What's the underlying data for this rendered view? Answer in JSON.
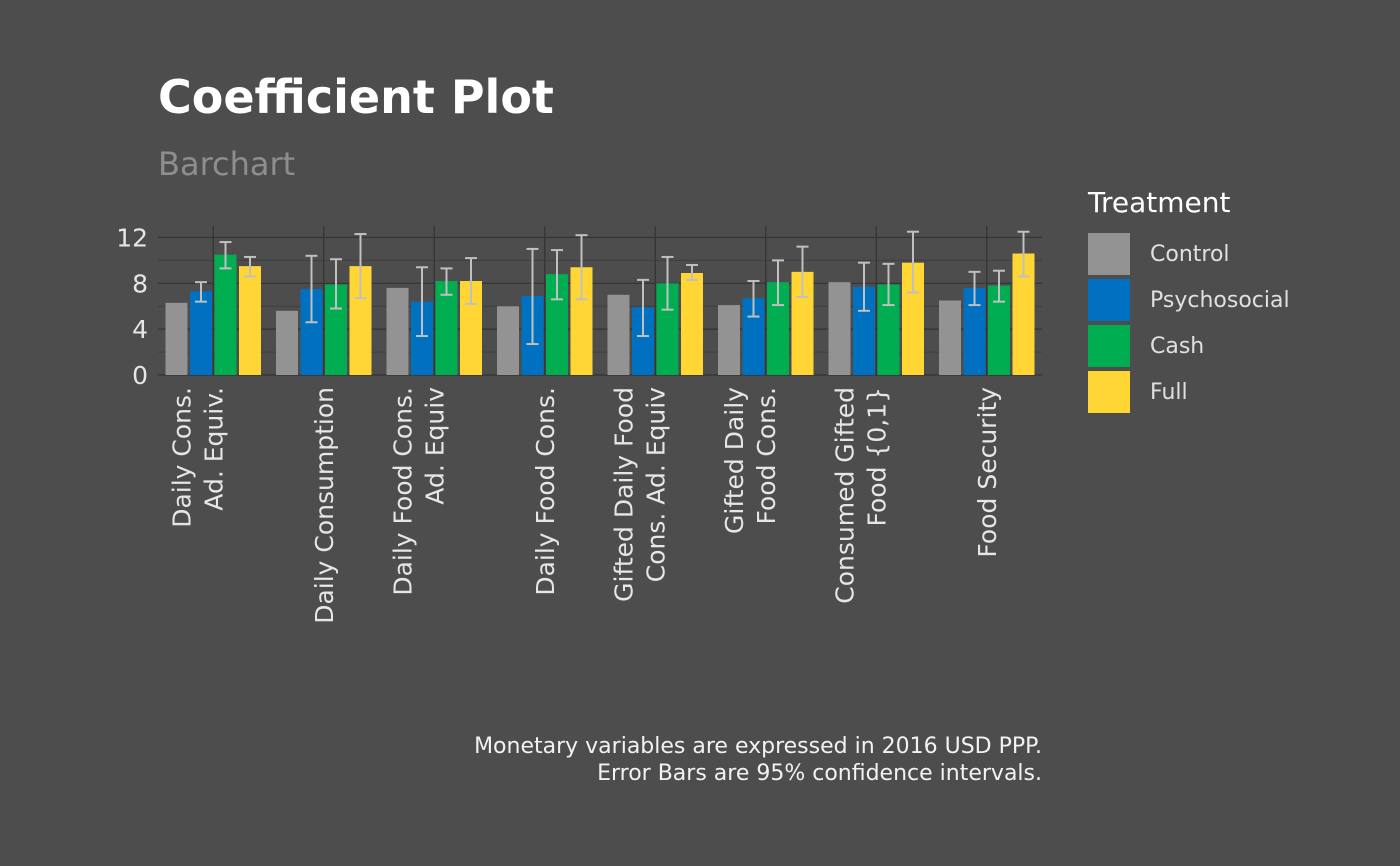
{
  "chart_data": {
    "type": "bar",
    "title": "Coefficient Plot",
    "subtitle": "Barchart",
    "caption_lines": [
      "Monetary variables are expressed in 2016 USD PPP.",
      "Error Bars are 95% confidence intervals."
    ],
    "xlabel": "",
    "ylabel": "",
    "ylim": [
      0,
      13
    ],
    "yticks": [
      0,
      4,
      8,
      12
    ],
    "grid": true,
    "legend_title": "Treatment",
    "legend_position": "right",
    "categories": [
      [
        "Daily Cons.",
        "Ad. Equiv."
      ],
      [
        "Daily Consumption"
      ],
      [
        "Daily Food Cons.",
        "Ad. Equiv"
      ],
      [
        "Daily Food Cons."
      ],
      [
        "Gifted Daily Food",
        "Cons. Ad. Equiv"
      ],
      [
        "Gifted Daily",
        "Food Cons."
      ],
      [
        "Consumed Gifted",
        "Food {0,1}"
      ],
      [
        "Food Security"
      ]
    ],
    "series": [
      {
        "name": "Control",
        "color": "#939393",
        "values": [
          6.3,
          5.6,
          7.6,
          6.0,
          7.0,
          6.1,
          8.1,
          6.5
        ],
        "ci_low": [
          null,
          null,
          null,
          null,
          null,
          null,
          null,
          null
        ],
        "ci_high": [
          null,
          null,
          null,
          null,
          null,
          null,
          null,
          null
        ]
      },
      {
        "name": "Psychosocial",
        "color": "#0070c0",
        "values": [
          7.3,
          7.5,
          6.4,
          6.9,
          5.9,
          6.7,
          7.7,
          7.6
        ],
        "ci_low": [
          6.4,
          4.6,
          3.4,
          2.7,
          3.4,
          5.1,
          5.6,
          6.1
        ],
        "ci_high": [
          8.1,
          10.4,
          9.4,
          11.0,
          8.3,
          8.2,
          9.8,
          9.0
        ]
      },
      {
        "name": "Cash",
        "color": "#00ad50",
        "values": [
          10.5,
          7.9,
          8.2,
          8.8,
          8.0,
          8.1,
          7.9,
          7.8
        ],
        "ci_low": [
          9.3,
          5.8,
          7.0,
          6.6,
          5.7,
          6.1,
          6.1,
          6.4
        ],
        "ci_high": [
          11.6,
          10.1,
          9.3,
          10.9,
          10.3,
          10.0,
          9.7,
          9.1
        ]
      },
      {
        "name": "Full",
        "color": "#ffd633",
        "values": [
          9.5,
          9.5,
          8.2,
          9.4,
          8.9,
          9.0,
          9.8,
          10.6
        ],
        "ci_low": [
          8.6,
          6.7,
          6.2,
          6.6,
          8.3,
          6.8,
          7.2,
          8.6
        ],
        "ci_high": [
          10.3,
          12.3,
          10.2,
          12.2,
          9.6,
          11.2,
          12.5,
          12.5
        ]
      }
    ],
    "colors": {
      "background": "#4d4d4d",
      "grid_major": "#333333",
      "grid_minor": "#3f3f3f",
      "errorbar": "#c0c0c0",
      "tick_text": "#e6e6e6"
    }
  }
}
